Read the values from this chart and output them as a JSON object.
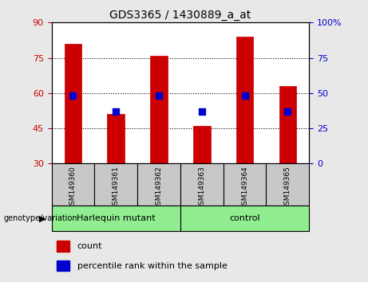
{
  "title": "GDS3365 / 1430889_a_at",
  "samples": [
    "GSM149360",
    "GSM149361",
    "GSM149362",
    "GSM149363",
    "GSM149364",
    "GSM149365"
  ],
  "bar_values": [
    81,
    51,
    76,
    46,
    84,
    63
  ],
  "percentile_values": [
    48,
    37,
    48,
    37,
    48,
    37
  ],
  "bar_color": "#cc0000",
  "dot_color": "#0000cc",
  "left_ylim": [
    30,
    90
  ],
  "left_yticks": [
    30,
    45,
    60,
    75,
    90
  ],
  "right_ylim": [
    0,
    100
  ],
  "right_yticks": [
    0,
    25,
    50,
    75,
    100
  ],
  "right_yticklabels": [
    "0",
    "25",
    "50",
    "75",
    "100%"
  ],
  "left_ycolor": "#cc0000",
  "right_ycolor": "#0000cc",
  "groups": [
    {
      "label": "Harlequin mutant",
      "indices": [
        0,
        1,
        2
      ],
      "color": "#90ee90"
    },
    {
      "label": "control",
      "indices": [
        3,
        4,
        5
      ],
      "color": "#90ee90"
    }
  ],
  "genotype_label": "genotype/variation",
  "legend_items": [
    {
      "label": "count",
      "color": "#cc0000"
    },
    {
      "label": "percentile rank within the sample",
      "color": "#0000cc"
    }
  ],
  "bar_bottom": 30,
  "plot_bg_color": "#ffffff",
  "outer_bg_color": "#e8e8e8",
  "dotted_yticks": [
    45,
    60,
    75
  ],
  "bar_width": 0.4,
  "dot_size": 30,
  "gray_box_color": "#c8c8c8"
}
